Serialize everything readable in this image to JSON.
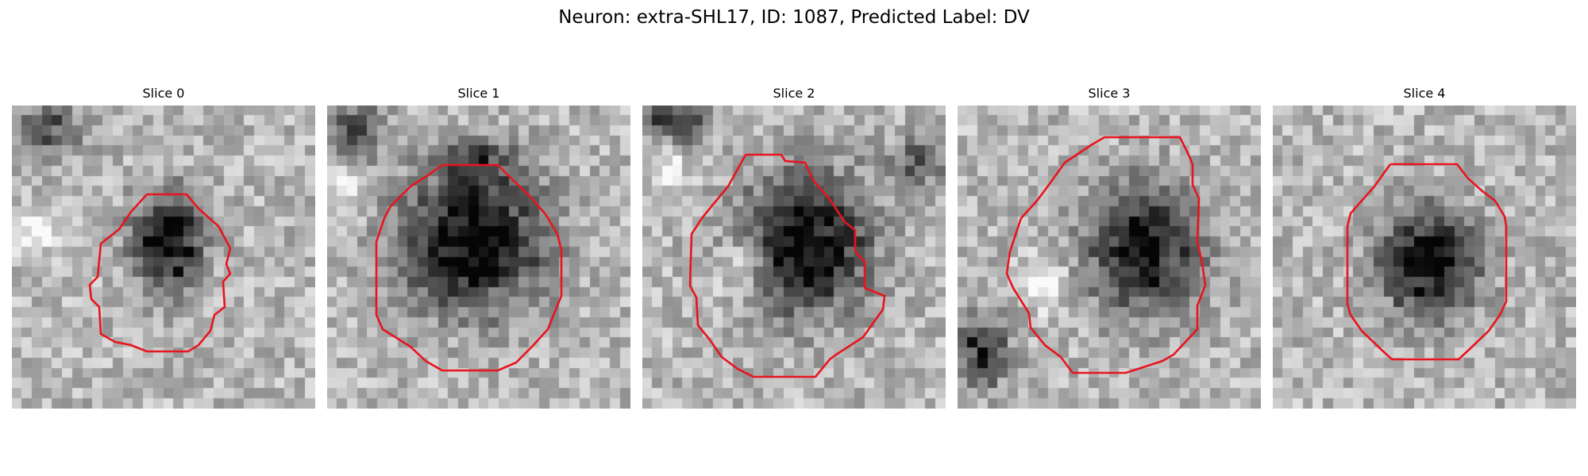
{
  "figure": {
    "title": "Neuron: extra-SHL17, ID: 1087, Predicted Label: DV"
  },
  "panels": [
    {
      "title": "Slice 0"
    },
    {
      "title": "Slice 1"
    },
    {
      "title": "Slice 2"
    },
    {
      "title": "Slice 3"
    },
    {
      "title": "Slice 4"
    }
  ],
  "colors": {
    "contour": "#e8141e",
    "background": "#ffffff"
  }
}
